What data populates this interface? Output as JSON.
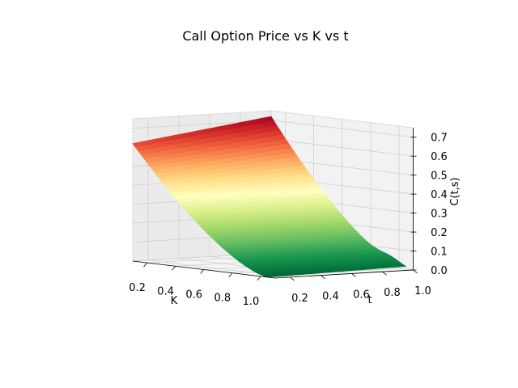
{
  "chart_data": {
    "type": "surface3d",
    "title": "Call Option Price vs K vs t",
    "xlabel": "K",
    "ylabel": "t",
    "zlabel": "C(t,s)",
    "x_ticks": [
      "0.2",
      "0.4",
      "0.6",
      "0.8",
      "1.0"
    ],
    "y_ticks": [
      "0.2",
      "0.4",
      "0.6",
      "0.8",
      "1.0"
    ],
    "z_ticks": [
      "0.0",
      "0.1",
      "0.2",
      "0.3",
      "0.4",
      "0.5",
      "0.6",
      "0.7"
    ],
    "xlim": [
      0.1,
      1.1
    ],
    "ylim": [
      0.1,
      1.0
    ],
    "zlim": [
      0.0,
      0.75
    ],
    "colormap": "RdYlGn",
    "colormap_stops": [
      "#a50026",
      "#d73027",
      "#f46d43",
      "#fdae61",
      "#fee08b",
      "#ffffbf",
      "#d9ef8b",
      "#a6d96a",
      "#66bd63",
      "#1a9850",
      "#006837"
    ],
    "surface": {
      "K_range": [
        0.1,
        1.05
      ],
      "t_range": [
        0.1,
        1.0
      ],
      "corner_values": {
        "K0.1_t0.1": 0.62,
        "K0.1_t1.0": 0.72,
        "K1.05_t0.1": 0.0,
        "K1.05_t1.0": 0.02
      }
    },
    "grid": true,
    "pane_color": "#f2f2f2"
  }
}
